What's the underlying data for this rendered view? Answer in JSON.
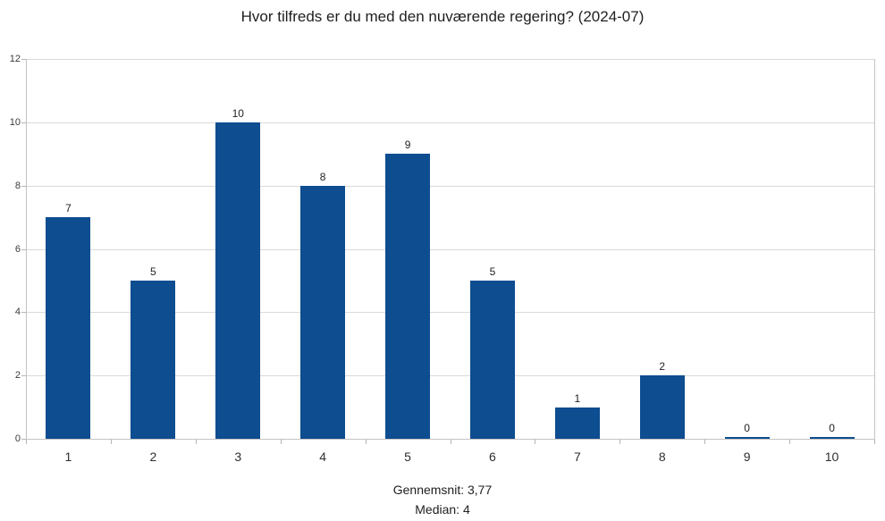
{
  "title": "Hvor tilfreds er du med den nuværende regering? (2024-07)",
  "footer": {
    "mean_label": "Gennemsnit: 3,77",
    "median_label": "Median: 4"
  },
  "colors": {
    "bar": "#0d4d90",
    "gridline": "#dadada",
    "axis": "#c3c3c3",
    "tick": "#b5b5b5",
    "text": "#1f1f1f"
  },
  "chart_data": {
    "type": "bar",
    "categories": [
      "1",
      "2",
      "3",
      "4",
      "5",
      "6",
      "7",
      "8",
      "9",
      "10"
    ],
    "values": [
      7,
      5,
      10,
      8,
      9,
      5,
      1,
      2,
      0,
      0
    ],
    "title": "Hvor tilfreds er du med den nuværende regering? (2024-07)",
    "xlabel": "",
    "ylabel": "",
    "ylim": [
      0,
      12
    ],
    "yticks": [
      0,
      2,
      4,
      6,
      8,
      10,
      12
    ],
    "grid": true,
    "legend": false,
    "data_labels": true,
    "annotations": [
      "Gennemsnit: 3,77",
      "Median: 4"
    ]
  }
}
